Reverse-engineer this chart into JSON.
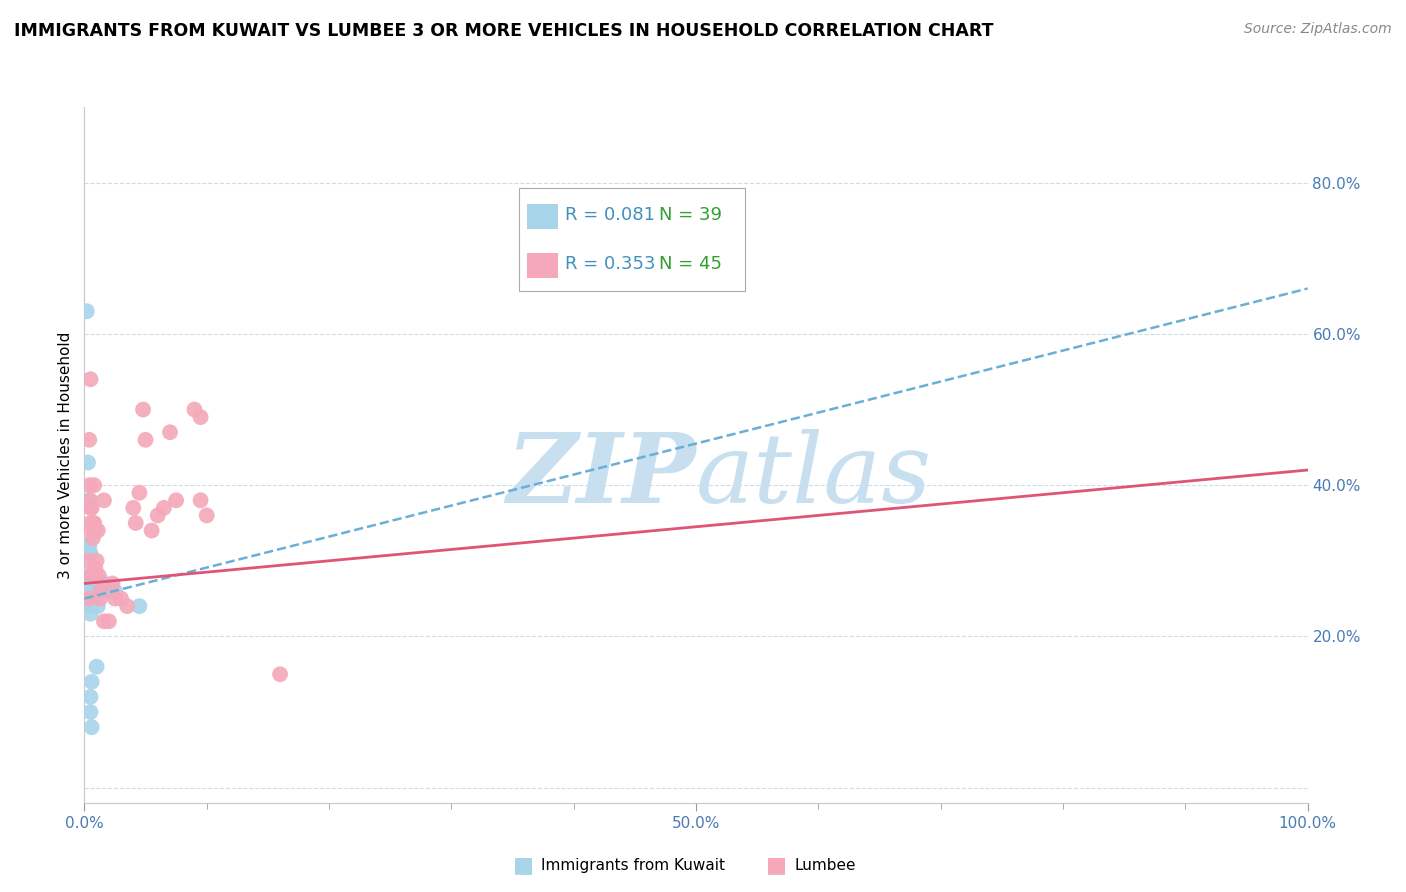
{
  "title": "IMMIGRANTS FROM KUWAIT VS LUMBEE 3 OR MORE VEHICLES IN HOUSEHOLD CORRELATION CHART",
  "source": "Source: ZipAtlas.com",
  "ylabel": "3 or more Vehicles in Household",
  "xlim": [
    0,
    100
  ],
  "ylim": [
    -2,
    90
  ],
  "yticks": [
    0,
    20,
    40,
    60,
    80
  ],
  "ytick_labels": [
    "",
    "20.0%",
    "40.0%",
    "60.0%",
    "80.0%"
  ],
  "xticks": [
    0,
    10,
    20,
    30,
    40,
    50,
    60,
    70,
    80,
    90,
    100
  ],
  "xtick_labels": [
    "0.0%",
    "",
    "",
    "",
    "",
    "50.0%",
    "",
    "",
    "",
    "",
    "100.0%"
  ],
  "legend_blue_r": "R = 0.081",
  "legend_blue_n": "N = 39",
  "legend_pink_r": "R = 0.353",
  "legend_pink_n": "N = 45",
  "legend_label_blue": "Immigrants from Kuwait",
  "legend_label_pink": "Lumbee",
  "blue_color": "#a8d4ea",
  "pink_color": "#f4a8ba",
  "blue_line_color": "#6baed6",
  "pink_line_color": "#e05575",
  "r_color": "#4090c0",
  "n_color": "#30a030",
  "watermark_color": "#c8dff0",
  "blue_points_x": [
    0.2,
    0.3,
    0.3,
    0.3,
    0.3,
    0.4,
    0.4,
    0.4,
    0.4,
    0.4,
    0.4,
    0.5,
    0.5,
    0.5,
    0.5,
    0.5,
    0.5,
    0.5,
    0.5,
    0.5,
    0.6,
    0.6,
    0.6,
    0.6,
    0.6,
    0.7,
    0.8,
    0.9,
    1.0,
    1.0,
    1.0,
    1.1,
    1.2,
    1.3,
    1.5,
    1.6,
    2.0,
    2.5,
    4.5
  ],
  "blue_points_y": [
    63,
    43,
    38,
    32,
    28,
    32,
    31,
    28,
    27,
    26,
    25,
    31,
    28,
    27,
    26,
    25,
    24,
    23,
    12,
    10,
    27,
    26,
    25,
    14,
    8,
    27,
    27,
    26,
    27,
    26,
    16,
    24,
    27,
    27,
    27,
    27,
    26,
    26,
    24
  ],
  "pink_points_x": [
    0.3,
    0.4,
    0.4,
    0.4,
    0.5,
    0.5,
    0.5,
    0.5,
    0.5,
    0.6,
    0.6,
    0.7,
    0.7,
    0.8,
    0.8,
    0.9,
    0.9,
    0.9,
    1.0,
    1.1,
    1.2,
    1.3,
    1.3,
    1.6,
    1.6,
    2.0,
    2.3,
    2.5,
    3.0,
    3.5,
    4.0,
    4.2,
    4.5,
    4.8,
    5.0,
    5.5,
    6.0,
    6.5,
    7.0,
    7.5,
    9.0,
    9.5,
    9.5,
    10.0,
    16.0
  ],
  "pink_points_y": [
    30,
    46,
    40,
    25,
    54,
    38,
    37,
    35,
    28,
    37,
    34,
    35,
    33,
    40,
    35,
    34,
    29,
    28,
    30,
    34,
    28,
    26,
    25,
    38,
    22,
    22,
    27,
    25,
    25,
    24,
    37,
    35,
    39,
    50,
    46,
    34,
    36,
    37,
    47,
    38,
    50,
    49,
    38,
    36,
    15
  ],
  "blue_trend_x": [
    0,
    100
  ],
  "blue_trend_y": [
    25,
    66
  ],
  "pink_trend_x": [
    0,
    100
  ],
  "pink_trend_y": [
    27,
    42
  ]
}
